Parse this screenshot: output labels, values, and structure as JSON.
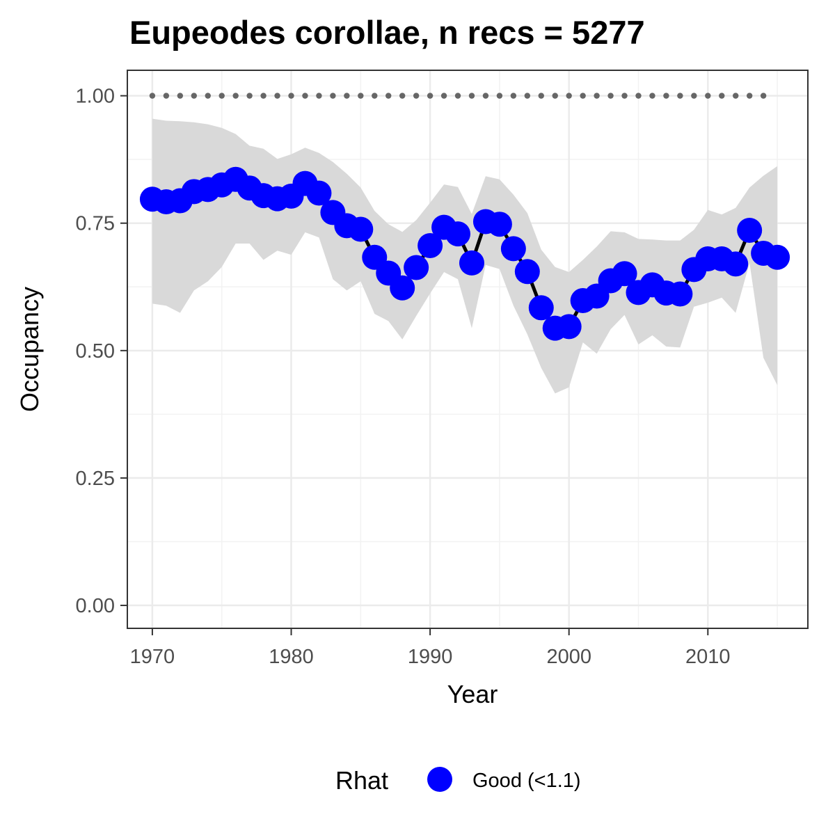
{
  "chart_data": {
    "type": "line",
    "title": "Eupeodes corollae, n recs = 5277",
    "xlabel": "Year",
    "ylabel": "Occupancy",
    "xlim": [
      1968.2,
      2017.2
    ],
    "ylim": [
      -0.045,
      1.05
    ],
    "x_ticks": [
      1970,
      1980,
      1990,
      2000,
      2010
    ],
    "x_tick_labels": [
      "1970",
      "1980",
      "1990",
      "2000",
      "2010"
    ],
    "y_ticks": [
      0,
      0.25,
      0.5,
      0.75,
      1.0
    ],
    "y_tick_labels": [
      "0.00",
      "0.25",
      "0.50",
      "0.75",
      "1.00"
    ],
    "grid": true,
    "legend": {
      "title": "Rhat",
      "position": "bottom",
      "entries": [
        {
          "label": "Good (<1.1)",
          "color": "#0000ff"
        }
      ]
    },
    "series": [
      {
        "name": "Good (<1.1)",
        "color": "#0000ff",
        "line_color": "#000000",
        "x": [
          1970,
          1971,
          1972,
          1973,
          1974,
          1975,
          1976,
          1977,
          1978,
          1979,
          1980,
          1981,
          1982,
          1983,
          1984,
          1985,
          1986,
          1987,
          1988,
          1989,
          1990,
          1991,
          1992,
          1993,
          1994,
          1995,
          1996,
          1997,
          1998,
          1999,
          2000,
          2001,
          2002,
          2003,
          2004,
          2005,
          2006,
          2007,
          2008,
          2009,
          2010,
          2011,
          2012,
          2013,
          2014,
          2015
        ],
        "values": [
          0.797,
          0.792,
          0.794,
          0.812,
          0.816,
          0.825,
          0.836,
          0.819,
          0.804,
          0.798,
          0.803,
          0.828,
          0.809,
          0.771,
          0.745,
          0.738,
          0.683,
          0.652,
          0.623,
          0.663,
          0.706,
          0.742,
          0.729,
          0.672,
          0.753,
          0.748,
          0.7,
          0.655,
          0.584,
          0.544,
          0.547,
          0.598,
          0.607,
          0.637,
          0.651,
          0.614,
          0.629,
          0.613,
          0.611,
          0.659,
          0.68,
          0.68,
          0.67,
          0.736,
          0.691,
          0.683
        ]
      }
    ],
    "credible_interval": {
      "color": "#d9d9d9",
      "x": [
        1970,
        1971,
        1972,
        1973,
        1974,
        1975,
        1976,
        1977,
        1978,
        1979,
        1980,
        1981,
        1982,
        1983,
        1984,
        1985,
        1986,
        1987,
        1988,
        1989,
        1990,
        1991,
        1992,
        1993,
        1994,
        1995,
        1996,
        1997,
        1998,
        1999,
        2000,
        2001,
        2002,
        2003,
        2004,
        2005,
        2006,
        2007,
        2008,
        2009,
        2010,
        2011,
        2012,
        2013,
        2014,
        2015
      ],
      "lower": [
        0.592,
        0.588,
        0.574,
        0.618,
        0.636,
        0.664,
        0.71,
        0.71,
        0.678,
        0.696,
        0.688,
        0.732,
        0.722,
        0.64,
        0.618,
        0.636,
        0.572,
        0.558,
        0.522,
        0.568,
        0.612,
        0.654,
        0.64,
        0.544,
        0.668,
        0.66,
        0.588,
        0.532,
        0.466,
        0.416,
        0.428,
        0.516,
        0.494,
        0.542,
        0.57,
        0.512,
        0.53,
        0.508,
        0.506,
        0.586,
        0.594,
        0.604,
        0.574,
        0.672,
        0.486,
        0.432
      ],
      "upper": [
        0.955,
        0.951,
        0.95,
        0.948,
        0.944,
        0.937,
        0.925,
        0.902,
        0.896,
        0.876,
        0.885,
        0.898,
        0.888,
        0.87,
        0.847,
        0.82,
        0.774,
        0.748,
        0.733,
        0.756,
        0.79,
        0.826,
        0.821,
        0.768,
        0.842,
        0.836,
        0.806,
        0.77,
        0.698,
        0.664,
        0.654,
        0.678,
        0.704,
        0.734,
        0.732,
        0.719,
        0.718,
        0.716,
        0.716,
        0.737,
        0.776,
        0.767,
        0.78,
        0.82,
        0.843,
        0.862
      ]
    },
    "reference_line": {
      "y": 1.0,
      "x_start": 1970,
      "x_end": 2014,
      "style": "dotted",
      "color": "#666666"
    }
  }
}
